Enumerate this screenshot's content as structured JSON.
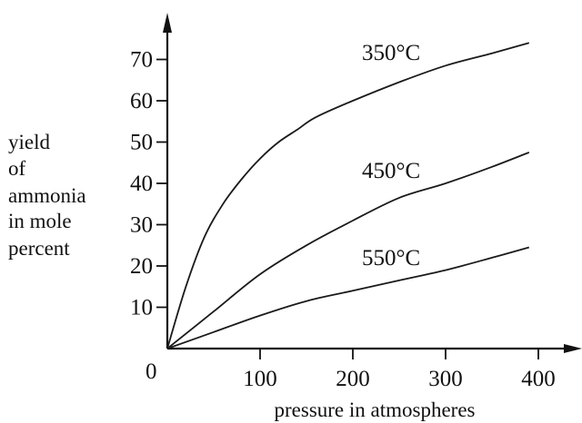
{
  "chart_data": {
    "type": "line",
    "title": "",
    "xlabel": "pressure in atmospheres",
    "ylabel_lines": [
      "yield",
      "of",
      "ammonia",
      "in mole",
      "percent"
    ],
    "origin_label": "0",
    "xlim": [
      0,
      400
    ],
    "ylim": [
      0,
      80
    ],
    "x_ticks": [
      100,
      200,
      300,
      400
    ],
    "y_ticks": [
      10,
      20,
      30,
      40,
      50,
      60,
      70
    ],
    "grid": false,
    "legend": "labels placed on curves",
    "series": [
      {
        "name": "350°C",
        "x": [
          0,
          20,
          40,
          60,
          80,
          100,
          120,
          140,
          160,
          200,
          250,
          300,
          350,
          390
        ],
        "y": [
          0,
          15,
          27,
          35,
          41,
          46,
          50,
          53,
          56,
          60,
          64.5,
          68.5,
          71.5,
          74
        ]
      },
      {
        "name": "450°C",
        "x": [
          0,
          50,
          100,
          150,
          200,
          250,
          300,
          350,
          390
        ],
        "y": [
          0,
          9,
          18,
          25,
          31,
          36.5,
          40,
          44,
          47.5
        ]
      },
      {
        "name": "550°C",
        "x": [
          0,
          50,
          100,
          150,
          200,
          250,
          300,
          350,
          390
        ],
        "y": [
          0,
          4,
          8,
          11.5,
          14,
          16.5,
          19,
          22,
          24.5
        ]
      }
    ]
  }
}
